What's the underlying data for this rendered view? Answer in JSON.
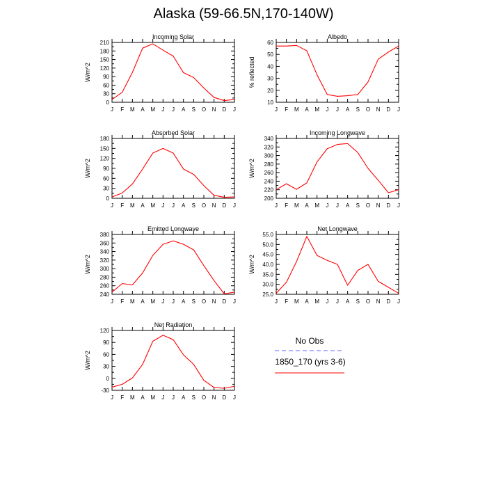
{
  "title": "Alaska (59-66.5N,170-140W)",
  "months": [
    "J",
    "F",
    "M",
    "A",
    "M",
    "J",
    "J",
    "A",
    "S",
    "O",
    "N",
    "D",
    "J"
  ],
  "colors": {
    "model": "#ff0000",
    "obs": "#6666ff"
  },
  "legend": {
    "entries": [
      {
        "label": "No Obs",
        "style": "dashed",
        "color": "#6666ff"
      },
      {
        "label": "1850_170 (yrs 3-6)",
        "style": "solid",
        "color": "#ff0000"
      }
    ]
  },
  "chart_data": [
    {
      "type": "line",
      "title": "Incoming Solar",
      "ylabel": "W/m^2",
      "ylim": [
        0,
        210
      ],
      "yticks": [
        "0",
        "30",
        "60",
        "90",
        "120",
        "150",
        "180",
        "210"
      ],
      "series": [
        {
          "name": "1850_170 (yrs 3-6)",
          "values": [
            10,
            35,
            105,
            190,
            205,
            183,
            162,
            104,
            87,
            50,
            17,
            6,
            10
          ]
        }
      ]
    },
    {
      "type": "line",
      "title": "Albedo",
      "ylabel": "% reflected",
      "ylim": [
        10,
        60
      ],
      "yticks": [
        "10",
        "20",
        "30",
        "40",
        "50",
        "60"
      ],
      "series": [
        {
          "name": "1850_170 (yrs 3-6)",
          "values": [
            57,
            57,
            57.5,
            53,
            33,
            16.5,
            15,
            15.5,
            16.5,
            27,
            46,
            52,
            57
          ]
        }
      ]
    },
    {
      "type": "line",
      "title": "Absorbed Solar",
      "ylabel": "W/m^2",
      "ylim": [
        0,
        180
      ],
      "yticks": [
        "0",
        "30",
        "60",
        "90",
        "120",
        "150",
        "180"
      ],
      "series": [
        {
          "name": "1850_170 (yrs 3-6)",
          "values": [
            4,
            16,
            43,
            88,
            136,
            150,
            136,
            88,
            72,
            38,
            9,
            3,
            4
          ]
        }
      ]
    },
    {
      "type": "line",
      "title": "Incoming Longwave",
      "ylabel": "W/m^2",
      "ylim": [
        200,
        340
      ],
      "yticks": [
        "200",
        "220",
        "240",
        "260",
        "280",
        "300",
        "320",
        "340"
      ],
      "series": [
        {
          "name": "1850_170 (yrs 3-6)",
          "values": [
            220,
            234,
            221,
            236,
            285,
            316,
            326,
            328,
            307,
            270,
            242,
            213,
            220
          ]
        }
      ]
    },
    {
      "type": "line",
      "title": "Emitted Longwave",
      "ylabel": "W/m^2",
      "ylim": [
        240,
        380
      ],
      "yticks": [
        "240",
        "260",
        "280",
        "300",
        "320",
        "340",
        "360",
        "380"
      ],
      "series": [
        {
          "name": "1850_170 (yrs 3-6)",
          "values": [
            245,
            265,
            262,
            290,
            331,
            357,
            365,
            357,
            344,
            307,
            272,
            241,
            245
          ]
        }
      ]
    },
    {
      "type": "line",
      "title": "Net Longwave",
      "ylabel": "W/m^2",
      "ylim": [
        25,
        55
      ],
      "yticks": [
        "25.0",
        "30.0",
        "35.0",
        "40.0",
        "45.0",
        "50.0",
        "55.0"
      ],
      "series": [
        {
          "name": "1850_170 (yrs 3-6)",
          "values": [
            25.5,
            31,
            41.5,
            54,
            44.5,
            42,
            40,
            29.5,
            37,
            40,
            31.5,
            28.5,
            25.5
          ]
        }
      ]
    },
    {
      "type": "line",
      "title": "Net Radiation",
      "ylabel": "W/m^2",
      "ylim": [
        -30,
        120
      ],
      "yticks": [
        "-30",
        "0",
        "30",
        "60",
        "90",
        "120"
      ],
      "series": [
        {
          "name": "1850_170 (yrs 3-6)",
          "values": [
            -22,
            -15,
            1,
            35,
            93,
            108,
            97,
            59,
            35,
            -5,
            -23,
            -25,
            -20
          ]
        }
      ]
    }
  ]
}
